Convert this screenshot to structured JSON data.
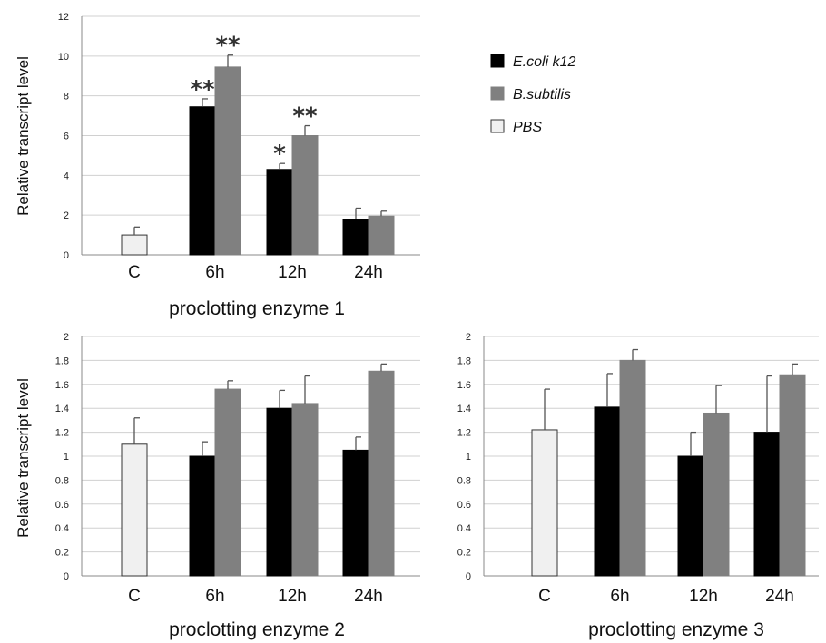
{
  "legend": [
    {
      "name": "E.coli k12",
      "color": "#000000"
    },
    {
      "name": "B.subtilis",
      "color": "#808080"
    },
    {
      "name": "PBS",
      "color": "#f0f0f0"
    }
  ],
  "chart_data": [
    {
      "type": "bar",
      "title": "proclotting enzyme 1",
      "ylabel": "Relative transcript level",
      "categories": [
        "C",
        "6h",
        "12h",
        "24h"
      ],
      "ylim": [
        0,
        12
      ],
      "yticks": [
        "0",
        "2",
        "4",
        "6",
        "8",
        "10",
        "12"
      ],
      "grid": true,
      "series": [
        {
          "name": "PBS",
          "color": "#f0f0f0",
          "values": [
            1.0,
            null,
            null,
            null
          ],
          "errors": [
            0.4,
            null,
            null,
            null
          ]
        },
        {
          "name": "E.coli k12",
          "color": "#000000",
          "values": [
            null,
            7.45,
            4.3,
            1.8
          ],
          "errors": [
            null,
            0.4,
            0.3,
            0.55
          ]
        },
        {
          "name": "B.subtilis",
          "color": "#808080",
          "values": [
            null,
            9.45,
            6.0,
            1.95
          ],
          "errors": [
            null,
            0.6,
            0.5,
            0.25
          ]
        }
      ],
      "annotations": [
        {
          "category": "6h",
          "series": "E.coli k12",
          "text": "**"
        },
        {
          "category": "6h",
          "series": "B.subtilis",
          "text": "**"
        },
        {
          "category": "12h",
          "series": "E.coli k12",
          "text": "*"
        },
        {
          "category": "12h",
          "series": "B.subtilis",
          "text": "**"
        }
      ]
    },
    {
      "type": "bar",
      "title": "proclotting enzyme 2",
      "ylabel": "Relative transcript level",
      "categories": [
        "C",
        "6h",
        "12h",
        "24h"
      ],
      "ylim": [
        0,
        2
      ],
      "yticks": [
        "0",
        "0.2",
        "0.4",
        "0.6",
        "0.8",
        "1",
        "1.2",
        "1.4",
        "1.6",
        "1.8",
        "2"
      ],
      "grid": true,
      "series": [
        {
          "name": "PBS",
          "color": "#f0f0f0",
          "values": [
            1.1,
            null,
            null,
            null
          ],
          "errors": [
            0.22,
            null,
            null,
            null
          ]
        },
        {
          "name": "E.coli k12",
          "color": "#000000",
          "values": [
            null,
            1.0,
            1.4,
            1.05
          ],
          "errors": [
            null,
            0.12,
            0.15,
            0.11
          ]
        },
        {
          "name": "B.subtilis",
          "color": "#808080",
          "values": [
            null,
            1.56,
            1.44,
            1.71
          ],
          "errors": [
            null,
            0.07,
            0.23,
            0.06
          ]
        }
      ],
      "annotations": []
    },
    {
      "type": "bar",
      "title": "proclotting enzyme 3",
      "ylabel": "",
      "categories": [
        "C",
        "6h",
        "12h",
        "24h"
      ],
      "ylim": [
        0,
        2
      ],
      "yticks": [
        "0",
        "0.2",
        "0.4",
        "0.6",
        "0.8",
        "1",
        "1.2",
        "1.4",
        "1.6",
        "1.8",
        "2"
      ],
      "grid": true,
      "series": [
        {
          "name": "PBS",
          "color": "#f0f0f0",
          "values": [
            1.22,
            null,
            null,
            null
          ],
          "errors": [
            0.34,
            null,
            null,
            null
          ]
        },
        {
          "name": "E.coli k12",
          "color": "#000000",
          "values": [
            null,
            1.41,
            1.0,
            1.2
          ],
          "errors": [
            null,
            0.28,
            0.2,
            0.47
          ]
        },
        {
          "name": "B.subtilis",
          "color": "#808080",
          "values": [
            null,
            1.8,
            1.36,
            1.68
          ],
          "errors": [
            null,
            0.09,
            0.23,
            0.09
          ]
        }
      ],
      "annotations": []
    }
  ]
}
